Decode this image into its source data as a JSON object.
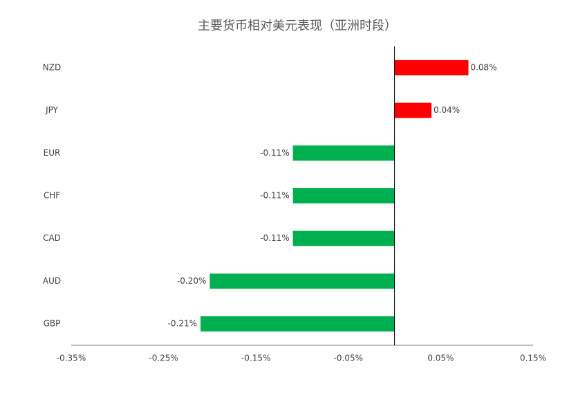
{
  "chart_data": {
    "type": "hbar",
    "title": "主要货币相对美元表现（亚洲时段）",
    "categories": [
      "NZD",
      "JPY",
      "EUR",
      "CHF",
      "CAD",
      "AUD",
      "GBP"
    ],
    "values": [
      0.08,
      0.04,
      -0.11,
      -0.11,
      -0.11,
      -0.2,
      -0.21
    ],
    "value_labels": [
      "0.08%",
      "0.04%",
      "-0.11%",
      "-0.11%",
      "-0.11%",
      "-0.20%",
      "-0.21%"
    ],
    "colors": [
      "#ff0000",
      "#ff0000",
      "#00b050",
      "#00b050",
      "#00b050",
      "#00b050",
      "#00b050"
    ],
    "xlim": [
      -0.35,
      0.15
    ],
    "xticks": [
      {
        "value": -0.35,
        "label": "-0.35%"
      },
      {
        "value": -0.25,
        "label": "-0.25%"
      },
      {
        "value": -0.15,
        "label": "-0.15%"
      },
      {
        "value": -0.05,
        "label": "-0.05%"
      },
      {
        "value": 0.05,
        "label": "0.05%"
      },
      {
        "value": 0.15,
        "label": "0.15%"
      }
    ],
    "grid": false
  }
}
